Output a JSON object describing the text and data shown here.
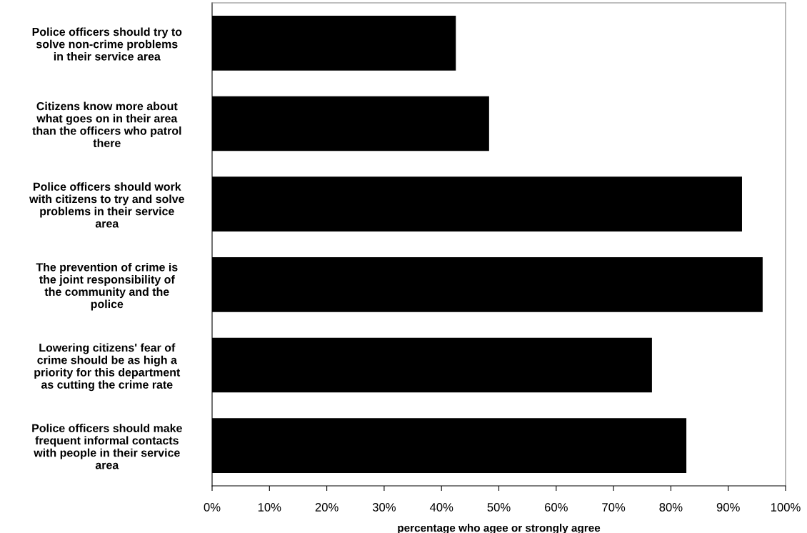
{
  "chart_data": {
    "type": "bar",
    "orientation": "horizontal",
    "categories": [
      "Police officers should try to\nsolve non-crime problems\nin their service area",
      "Citizens know more about\nwhat goes on in their area\nthan the officers who patrol\nthere",
      "Police officers should work\nwith citizens to try and solve\nproblems in their service\narea",
      "The prevention of crime is\nthe joint responsibility of\nthe community and the\npolice",
      "Lowering citizens' fear of\ncrime should be as high a\npriority for this department\nas cutting the crime rate",
      "Police officers should make\nfrequent informal contacts\nwith people in their service\narea"
    ],
    "values": [
      42.5,
      48.3,
      92.4,
      96.0,
      76.7,
      82.7
    ],
    "color": "#000000",
    "xlabel": "percentage who agee or strongly agree",
    "xlim": [
      0,
      100
    ],
    "xticks": [
      {
        "value": 0,
        "label": "0%"
      },
      {
        "value": 10,
        "label": "10%"
      },
      {
        "value": 20,
        "label": "20%"
      },
      {
        "value": 30,
        "label": "30%"
      },
      {
        "value": 40,
        "label": "40%"
      },
      {
        "value": 50,
        "label": "50%"
      },
      {
        "value": 60,
        "label": "60%"
      },
      {
        "value": 70,
        "label": "70%"
      },
      {
        "value": 80,
        "label": "80%"
      },
      {
        "value": 90,
        "label": "90%"
      },
      {
        "value": 100,
        "label": "100%"
      }
    ],
    "grid": false,
    "legend": false
  }
}
